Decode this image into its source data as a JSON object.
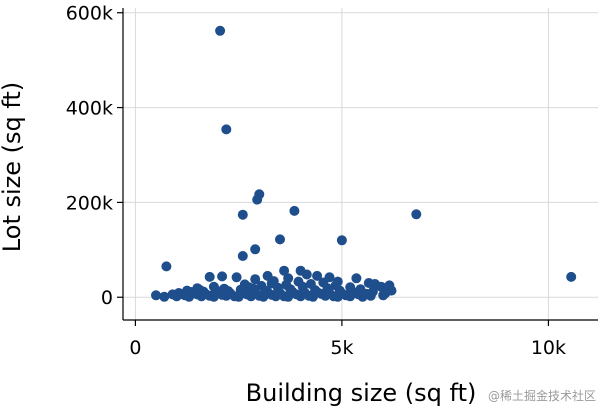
{
  "chart_data": {
    "type": "scatter",
    "title": "",
    "xlabel": "Building size (sq ft)",
    "ylabel": "Lot size (sq ft)",
    "xlim": [
      -300,
      11200
    ],
    "ylim": [
      -48000,
      610000
    ],
    "xticks": [
      0,
      5000,
      10000
    ],
    "xtick_labels": [
      "0",
      "5k",
      "10k"
    ],
    "yticks": [
      0,
      200000,
      400000,
      600000
    ],
    "ytick_labels": [
      "0",
      "200k",
      "400k",
      "600k"
    ],
    "grid": true,
    "color": "#1f4e8c",
    "points": [
      [
        2050,
        562000
      ],
      [
        2200,
        354000
      ],
      [
        3000,
        217000
      ],
      [
        2950,
        206000
      ],
      [
        2600,
        174000
      ],
      [
        3850,
        182000
      ],
      [
        6800,
        175000
      ],
      [
        5000,
        120000
      ],
      [
        3500,
        122000
      ],
      [
        2900,
        101000
      ],
      [
        2600,
        87000
      ],
      [
        750,
        65000
      ],
      [
        10550,
        43000
      ],
      [
        1800,
        43000
      ],
      [
        2100,
        44000
      ],
      [
        2450,
        42000
      ],
      [
        3200,
        45000
      ],
      [
        3600,
        56000
      ],
      [
        4000,
        56000
      ],
      [
        4150,
        48000
      ],
      [
        4400,
        45000
      ],
      [
        3700,
        40000
      ],
      [
        4700,
        42000
      ],
      [
        5350,
        40000
      ],
      [
        2900,
        38000
      ],
      [
        3350,
        34000
      ],
      [
        4900,
        33000
      ],
      [
        5650,
        30000
      ],
      [
        5800,
        28000
      ],
      [
        5950,
        22000
      ],
      [
        6150,
        25000
      ],
      [
        6200,
        14000
      ],
      [
        6050,
        8000
      ],
      [
        5750,
        12000
      ],
      [
        5450,
        17000
      ],
      [
        5200,
        21000
      ],
      [
        4950,
        14000
      ],
      [
        4650,
        19000
      ],
      [
        4350,
        15000
      ],
      [
        4050,
        22000
      ],
      [
        3750,
        17000
      ],
      [
        3450,
        20000
      ],
      [
        3150,
        14000
      ],
      [
        2850,
        18000
      ],
      [
        2550,
        16000
      ],
      [
        2250,
        13000
      ],
      [
        1950,
        15000
      ],
      [
        1650,
        12000
      ],
      [
        1350,
        11000
      ],
      [
        1050,
        9000
      ],
      [
        900,
        6000
      ],
      [
        1200,
        4000
      ],
      [
        1500,
        6000
      ],
      [
        1800,
        3000
      ],
      [
        2100,
        5000
      ],
      [
        2400,
        2000
      ],
      [
        2700,
        6000
      ],
      [
        3000,
        3000
      ],
      [
        3300,
        5000
      ],
      [
        3600,
        2000
      ],
      [
        3900,
        6000
      ],
      [
        4200,
        3000
      ],
      [
        4500,
        7000
      ],
      [
        4800,
        2000
      ],
      [
        5100,
        4000
      ],
      [
        5400,
        6000
      ],
      [
        5700,
        3000
      ],
      [
        6000,
        4000
      ],
      [
        500,
        4000
      ],
      [
        700,
        1000
      ],
      [
        1000,
        2000
      ],
      [
        1300,
        1000
      ],
      [
        1600,
        2000
      ],
      [
        1900,
        1000
      ],
      [
        2200,
        3000
      ],
      [
        2500,
        1000
      ],
      [
        2800,
        2000
      ],
      [
        3100,
        1000
      ],
      [
        3400,
        2000
      ],
      [
        3700,
        1000
      ],
      [
        4000,
        2000
      ],
      [
        4300,
        1000
      ],
      [
        4600,
        3000
      ],
      [
        4900,
        1000
      ],
      [
        5200,
        2000
      ],
      [
        5500,
        1000
      ],
      [
        1100,
        7000
      ],
      [
        1400,
        8000
      ],
      [
        1700,
        7000
      ],
      [
        2000,
        9000
      ],
      [
        2300,
        8000
      ],
      [
        2600,
        10000
      ],
      [
        2900,
        9000
      ],
      [
        3200,
        11000
      ],
      [
        3500,
        9000
      ],
      [
        3800,
        12000
      ],
      [
        4100,
        10000
      ],
      [
        4400,
        11000
      ],
      [
        4700,
        9000
      ],
      [
        5000,
        8000
      ],
      [
        5300,
        10000
      ],
      [
        5600,
        7000
      ],
      [
        1250,
        14000
      ],
      [
        1550,
        16000
      ],
      [
        2150,
        18000
      ],
      [
        2750,
        21000
      ],
      [
        3050,
        24000
      ],
      [
        3650,
        26000
      ],
      [
        4250,
        28000
      ],
      [
        4850,
        25000
      ],
      [
        4550,
        31000
      ],
      [
        3950,
        33000
      ],
      [
        3300,
        29000
      ],
      [
        2650,
        27000
      ],
      [
        1900,
        22000
      ],
      [
        1500,
        19000
      ]
    ]
  },
  "watermark": "@稀土掘金技术社区"
}
